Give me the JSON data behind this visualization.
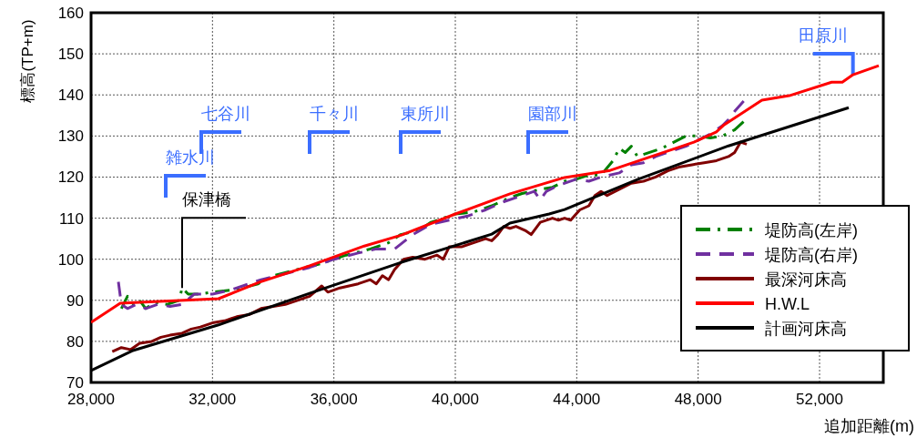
{
  "chart_data": {
    "type": "line",
    "xlabel": "追加距離(m)",
    "ylabel": "標高(TP+m)",
    "xlim": [
      28000,
      54100
    ],
    "ylim": [
      70,
      160
    ],
    "xticks": [
      {
        "value": 28000,
        "label": "28,000"
      },
      {
        "value": 32000,
        "label": "32,000"
      },
      {
        "value": 36000,
        "label": "36,000"
      },
      {
        "value": 40000,
        "label": "40,000"
      },
      {
        "value": 44000,
        "label": "44,000"
      },
      {
        "value": 48000,
        "label": "48,000"
      },
      {
        "value": 52000,
        "label": "52,000"
      }
    ],
    "yticks": [
      70,
      80,
      90,
      100,
      110,
      120,
      130,
      140,
      150,
      160
    ],
    "grid": true,
    "legend": "bottom right",
    "series": [
      {
        "name": "堤防高(左岸)",
        "color": "#008000",
        "line_style": "dashdot",
        "x": [
          29000,
          29200,
          29400,
          29600,
          29800,
          30100,
          30500,
          30900,
          31000,
          31200,
          31600,
          32000,
          32600,
          33000,
          33500,
          34000,
          34800,
          35600,
          36400,
          37200,
          37800,
          38200,
          38800,
          39200,
          39600,
          40000,
          40600,
          41200,
          41800,
          42200,
          42800,
          43200,
          43600,
          44000,
          44400,
          44800,
          45200,
          45400,
          45600,
          45800,
          46000,
          46400,
          46800,
          47200,
          47600,
          48000,
          48400,
          48800,
          49200,
          49500
        ],
        "values": [
          88,
          91,
          89,
          90,
          88,
          89.5,
          89,
          90,
          93,
          91.5,
          91.5,
          92,
          92.5,
          93,
          94,
          96,
          97.5,
          99,
          101,
          102.5,
          104,
          106,
          107,
          109,
          110,
          111,
          111.5,
          113,
          115,
          116,
          117,
          117.5,
          119,
          119.5,
          120.5,
          120.5,
          124,
          127,
          126,
          127.5,
          125,
          126,
          127,
          128.5,
          130,
          130,
          129.5,
          130,
          131.5,
          133.5
        ]
      },
      {
        "name": "堤防高(右岸)",
        "color": "#7030a0",
        "line_style": "dashed",
        "x": [
          28900,
          29000,
          29200,
          29500,
          29800,
          30200,
          30600,
          31000,
          31400,
          32000,
          32600,
          33000,
          33600,
          34400,
          35200,
          36000,
          36800,
          37400,
          38000,
          38600,
          39200,
          39800,
          40400,
          41000,
          41600,
          42200,
          42600,
          42800,
          43000,
          43400,
          44000,
          44400,
          44800,
          45400,
          45800,
          46200,
          46600,
          47000,
          47600,
          48000,
          48400,
          48800,
          49000,
          49200,
          49500
        ],
        "values": [
          94.5,
          89,
          88,
          89,
          88,
          89,
          88.5,
          89,
          91.5,
          91.5,
          92.5,
          93.5,
          95,
          96.5,
          98,
          100,
          101.5,
          102.5,
          102.5,
          106,
          108.5,
          109.5,
          110.5,
          112,
          114,
          115.5,
          116.5,
          114.5,
          116.5,
          118,
          119.5,
          119,
          120,
          121,
          123,
          123.5,
          125,
          126,
          127.5,
          129,
          130.5,
          132.5,
          134,
          136,
          138.5
        ]
      },
      {
        "name": "最深河床高",
        "color": "#800000",
        "line_style": "solid",
        "x": [
          28700,
          29000,
          29300,
          29600,
          30000,
          30300,
          30600,
          31000,
          31300,
          31600,
          32000,
          32400,
          32800,
          33200,
          33600,
          34000,
          34400,
          34800,
          35200,
          35600,
          35800,
          36200,
          36800,
          37200,
          37400,
          37600,
          37800,
          38000,
          38300,
          38600,
          39000,
          39400,
          39600,
          39800,
          40200,
          40600,
          41000,
          41200,
          41400,
          41600,
          41800,
          42000,
          42300,
          42500,
          42800,
          43200,
          43400,
          43600,
          43800,
          44100,
          44400,
          44600,
          44800,
          45000,
          45400,
          45800,
          46200,
          46600,
          47000,
          47400,
          47800,
          48200,
          48600,
          48800,
          49000,
          49200,
          49400,
          49600
        ],
        "values": [
          77.5,
          78.5,
          78,
          79.5,
          80,
          81,
          81.5,
          82,
          83,
          83.5,
          84.5,
          85,
          86,
          86.5,
          88,
          88.5,
          89,
          90,
          91,
          93.5,
          92,
          93,
          94,
          95,
          94,
          96,
          95,
          97.5,
          100,
          100.5,
          100,
          101,
          100,
          103,
          103,
          104,
          105,
          104.5,
          106,
          108,
          107.5,
          108,
          107,
          106,
          109,
          110,
          109.5,
          110,
          109.5,
          112,
          113,
          115.5,
          116.5,
          115.5,
          117,
          118.5,
          119,
          120,
          121.5,
          122.5,
          123,
          123.5,
          124,
          124.5,
          125,
          126,
          128.5,
          128
        ]
      },
      {
        "name": "H.W.L",
        "color": "#ff0000",
        "line_style": "solid",
        "x": [
          28000,
          28960,
          32200,
          33550,
          35200,
          37000,
          38230,
          40000,
          41800,
          43600,
          45100,
          47860,
          48600,
          48850,
          50100,
          51000,
          52400,
          52750,
          53100,
          53950
        ],
        "values": [
          84.6,
          89.3,
          90.4,
          94.4,
          98.4,
          103.2,
          105.9,
          111,
          115.9,
          119.9,
          121.6,
          128.5,
          131,
          132.7,
          138.7,
          139.8,
          143.1,
          143.1,
          144.9,
          147.1
        ]
      },
      {
        "name": "計画河床高",
        "color": "#000000",
        "line_style": "solid",
        "x": [
          28000,
          29350,
          32200,
          35200,
          38200,
          41200,
          41800,
          43090,
          43600,
          46000,
          49000,
          52960
        ],
        "values": [
          72.9,
          77.7,
          84,
          91.7,
          99.2,
          106.1,
          108.8,
          111,
          112.1,
          119.4,
          127.6,
          136.9
        ]
      }
    ],
    "annotations": [
      "雑水川",
      "七谷川",
      "千々川",
      "東所川",
      "園部川",
      {
        "text": "田原川",
        "x": 53100,
        "y": 144.9
      },
      {
        "text": "保津橋",
        "x": 31000,
        "y": 93
      }
    ]
  }
}
